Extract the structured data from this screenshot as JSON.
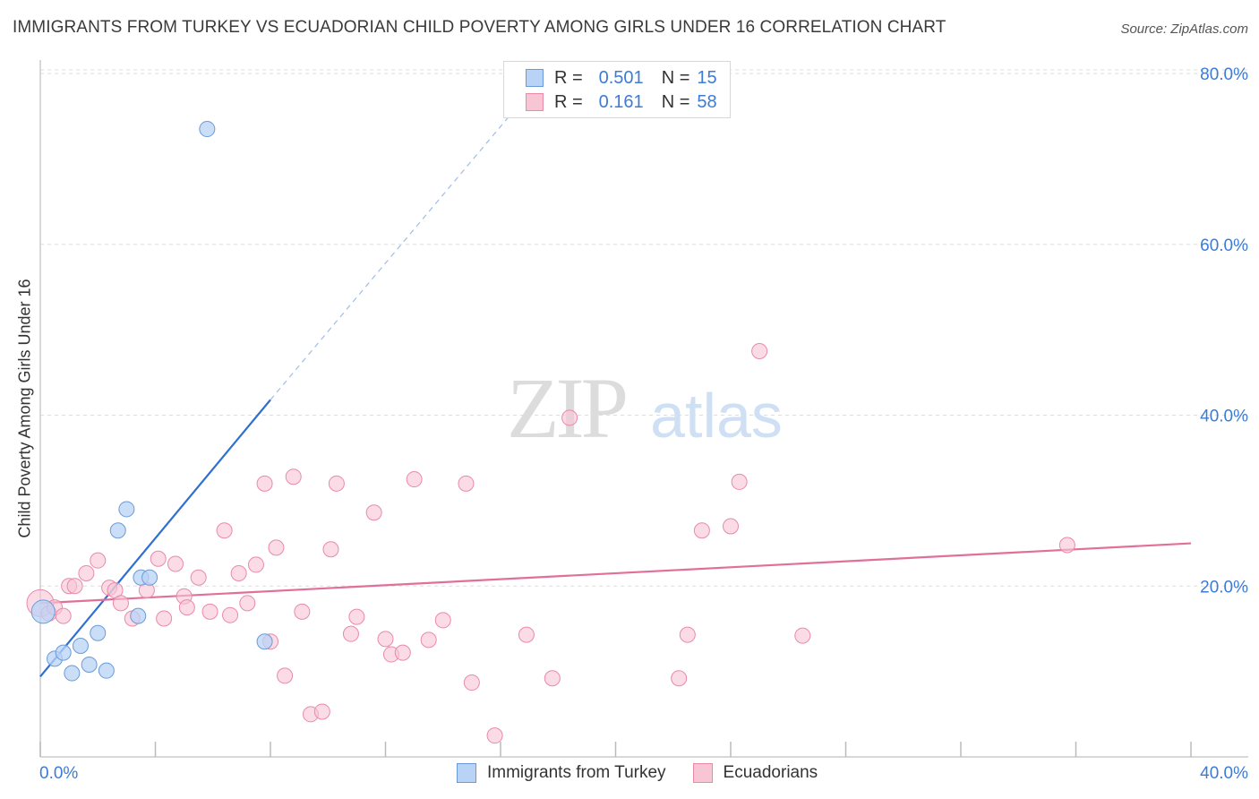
{
  "title": "IMMIGRANTS FROM TURKEY VS ECUADORIAN CHILD POVERTY AMONG GIRLS UNDER 16 CORRELATION CHART",
  "source": "Source: ZipAtlas.com",
  "watermark": {
    "zip": "ZIP",
    "atlas": "atlas"
  },
  "legend": {
    "r_label": "R =",
    "n_label": "N =",
    "series": [
      {
        "r": "0.501",
        "n": "15"
      },
      {
        "r": "0.161",
        "n": "58"
      }
    ]
  },
  "colors": {
    "turkey_fill": "#b8d3f5",
    "turkey_stroke": "#6a9bd8",
    "turkey_line": "#2f6fcf",
    "ecuador_fill": "#f8c5d5",
    "ecuador_stroke": "#e98aa8",
    "ecuador_line": "#e0709a",
    "tick_label": "#3d7bd4",
    "grid": "#dddddd"
  },
  "chart_data": {
    "type": "scatter",
    "title": "IMMIGRANTS FROM TURKEY VS ECUADORIAN CHILD POVERTY AMONG GIRLS UNDER 16 CORRELATION CHART",
    "xlabel": "",
    "ylabel": "Child Poverty Among Girls Under 16",
    "xlim": [
      0,
      40
    ],
    "ylim": [
      0,
      82
    ],
    "x_tick_labels": {
      "left": "0.0%",
      "right": "40.0%"
    },
    "y_ticks": [
      20,
      40,
      60,
      80
    ],
    "y_tick_labels": [
      "20.0%",
      "40.0%",
      "60.0%",
      "80.0%"
    ],
    "series": [
      {
        "name": "Immigrants from Turkey",
        "points": [
          [
            0.1,
            17.0
          ],
          [
            0.5,
            11.5
          ],
          [
            0.8,
            12.2
          ],
          [
            1.1,
            9.8
          ],
          [
            1.4,
            13.0
          ],
          [
            1.7,
            10.8
          ],
          [
            2.0,
            14.5
          ],
          [
            2.3,
            10.1
          ],
          [
            2.7,
            26.5
          ],
          [
            3.0,
            29.0
          ],
          [
            3.4,
            16.5
          ],
          [
            3.5,
            21.0
          ],
          [
            3.8,
            21.0
          ],
          [
            5.8,
            73.5
          ],
          [
            7.8,
            13.5
          ]
        ],
        "trend": {
          "x0": 0,
          "y0": 9.4,
          "x1": 8.0,
          "y1": 41.8,
          "dash_x1": 16.8,
          "dash_y1": 77.0
        }
      },
      {
        "name": "Ecuadorians",
        "points": [
          [
            0.0,
            18.0
          ],
          [
            0.3,
            16.8
          ],
          [
            0.5,
            17.5
          ],
          [
            0.8,
            16.5
          ],
          [
            1.0,
            20.0
          ],
          [
            1.2,
            20.0
          ],
          [
            1.6,
            21.5
          ],
          [
            2.0,
            23.0
          ],
          [
            2.4,
            19.8
          ],
          [
            2.6,
            19.5
          ],
          [
            2.8,
            18.0
          ],
          [
            3.2,
            16.2
          ],
          [
            3.7,
            19.5
          ],
          [
            4.1,
            23.2
          ],
          [
            4.3,
            16.2
          ],
          [
            4.7,
            22.6
          ],
          [
            5.0,
            18.8
          ],
          [
            5.1,
            17.5
          ],
          [
            5.5,
            21.0
          ],
          [
            5.9,
            17.0
          ],
          [
            6.4,
            26.5
          ],
          [
            6.6,
            16.6
          ],
          [
            6.9,
            21.5
          ],
          [
            7.2,
            18.0
          ],
          [
            7.5,
            22.5
          ],
          [
            7.8,
            32.0
          ],
          [
            8.0,
            13.5
          ],
          [
            8.2,
            24.5
          ],
          [
            8.5,
            9.5
          ],
          [
            8.8,
            32.8
          ],
          [
            9.1,
            17.0
          ],
          [
            9.4,
            5.0
          ],
          [
            9.8,
            5.3
          ],
          [
            10.1,
            24.3
          ],
          [
            10.3,
            32.0
          ],
          [
            10.8,
            14.4
          ],
          [
            11.0,
            16.4
          ],
          [
            11.6,
            28.6
          ],
          [
            12.0,
            13.8
          ],
          [
            12.2,
            12.0
          ],
          [
            12.6,
            12.2
          ],
          [
            13.0,
            32.5
          ],
          [
            13.5,
            13.7
          ],
          [
            14.0,
            16.0
          ],
          [
            14.8,
            32.0
          ],
          [
            15.0,
            8.7
          ],
          [
            15.8,
            2.5
          ],
          [
            16.9,
            14.3
          ],
          [
            17.8,
            9.2
          ],
          [
            18.4,
            39.7
          ],
          [
            22.2,
            9.2
          ],
          [
            22.5,
            14.3
          ],
          [
            23.0,
            26.5
          ],
          [
            24.0,
            27.0
          ],
          [
            24.3,
            32.2
          ],
          [
            25.0,
            47.5
          ],
          [
            26.5,
            14.2
          ],
          [
            35.7,
            24.8
          ]
        ],
        "trend": {
          "x0": 0,
          "y0": 18.0,
          "x1": 40,
          "y1": 25.0
        }
      }
    ]
  }
}
